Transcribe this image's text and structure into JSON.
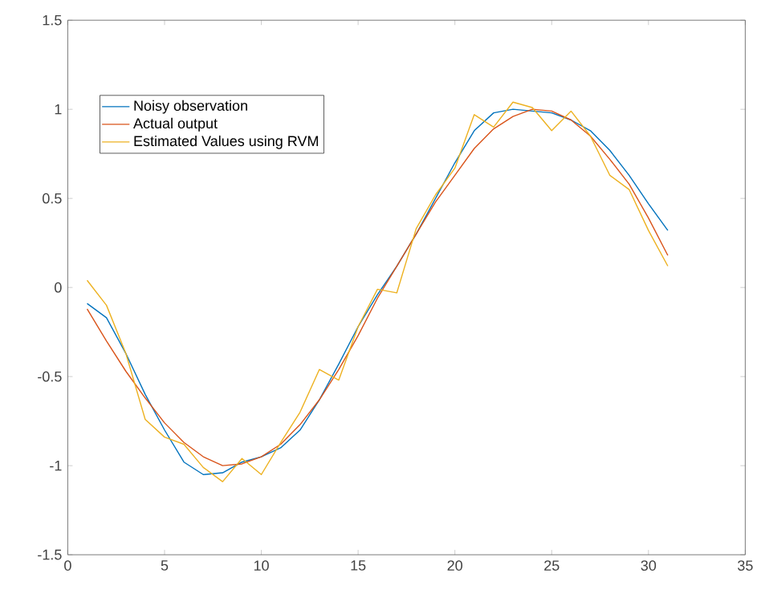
{
  "chart_data": {
    "type": "line",
    "x": [
      1,
      2,
      3,
      4,
      5,
      6,
      7,
      8,
      9,
      10,
      11,
      12,
      13,
      14,
      15,
      16,
      17,
      18,
      19,
      20,
      21,
      22,
      23,
      24,
      25,
      26,
      27,
      28,
      29,
      30,
      31
    ],
    "series": [
      {
        "name": "Noisy observation",
        "color": "#0072bd",
        "values": [
          -0.09,
          -0.17,
          -0.37,
          -0.6,
          -0.8,
          -0.98,
          -1.05,
          -1.04,
          -0.98,
          -0.95,
          -0.9,
          -0.8,
          -0.63,
          -0.43,
          -0.22,
          -0.04,
          0.12,
          0.3,
          0.5,
          0.7,
          0.88,
          0.98,
          1.0,
          0.99,
          0.98,
          0.94,
          0.88,
          0.77,
          0.63,
          0.47,
          0.32
        ]
      },
      {
        "name": "Actual output",
        "color": "#d95319",
        "values": [
          -0.12,
          -0.3,
          -0.47,
          -0.62,
          -0.76,
          -0.87,
          -0.95,
          -1.0,
          -0.99,
          -0.95,
          -0.88,
          -0.77,
          -0.63,
          -0.46,
          -0.27,
          -0.06,
          0.12,
          0.3,
          0.48,
          0.63,
          0.78,
          0.89,
          0.96,
          1.0,
          0.99,
          0.94,
          0.85,
          0.72,
          0.58,
          0.39,
          0.18
        ]
      },
      {
        "name": "Estimated Values using RVM",
        "color": "#edb120",
        "values": [
          0.04,
          -0.1,
          -0.37,
          -0.74,
          -0.84,
          -0.88,
          -1.01,
          -1.09,
          -0.96,
          -1.05,
          -0.87,
          -0.7,
          -0.46,
          -0.52,
          -0.22,
          -0.01,
          -0.03,
          0.33,
          0.52,
          0.67,
          0.97,
          0.9,
          1.04,
          1.01,
          0.88,
          0.99,
          0.85,
          0.63,
          0.55,
          0.32,
          0.12
        ]
      }
    ],
    "xlim": [
      0,
      35
    ],
    "xticks": [
      0,
      5,
      10,
      15,
      20,
      25,
      30,
      35
    ],
    "ylim": [
      -1.5,
      1.5
    ],
    "yticks": [
      -1.5,
      -1,
      -0.5,
      0,
      0.5,
      1,
      1.5
    ],
    "legend": "top left",
    "marker": "none",
    "line_style": "solid",
    "grid": false
  }
}
